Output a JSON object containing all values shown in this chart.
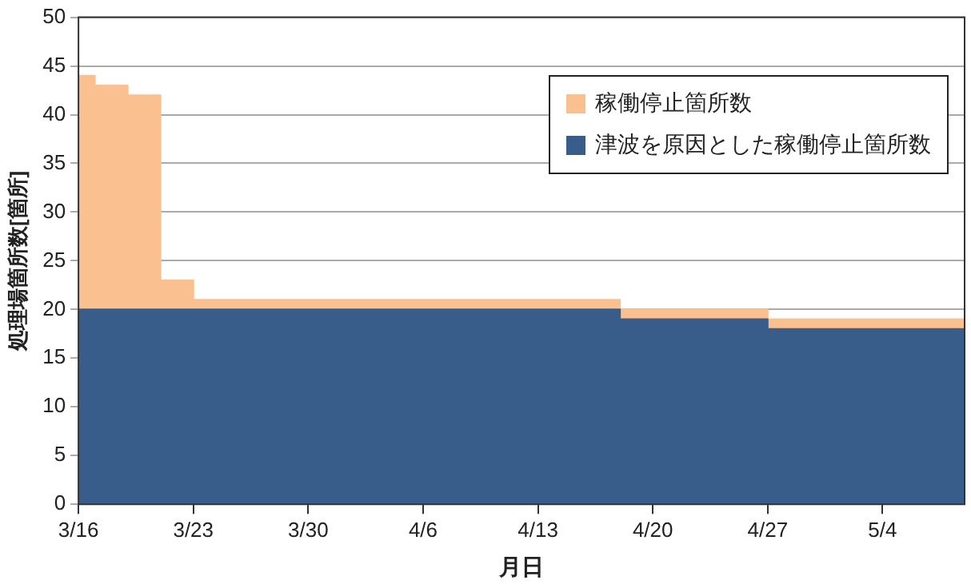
{
  "chart_data": {
    "type": "area",
    "xlabel": "月日",
    "ylabel": "処理場箇所数[箇所]",
    "series": [
      {
        "name": "稼働停止箇所数",
        "color": "#fac090",
        "x": [
          "--03-16",
          "--03-17",
          "--03-17",
          "--03-19",
          "--03-19",
          "--03-21",
          "--03-21",
          "--03-23",
          "--03-23",
          "--04-18",
          "--04-18",
          "--04-27",
          "--04-27",
          "--05-09"
        ],
        "values": [
          44,
          44,
          43,
          43,
          42,
          42,
          23,
          23,
          21,
          21,
          20,
          20,
          19,
          19
        ]
      },
      {
        "name": "津波を原因とした稼働停止箇所数",
        "color": "#385d8a",
        "x": [
          "--03-16",
          "--04-18",
          "--04-18",
          "--04-27",
          "--04-27",
          "--05-09"
        ],
        "values": [
          20,
          20,
          19,
          19,
          18,
          18
        ]
      }
    ],
    "xlim": [
      "--03-16",
      "--05-09"
    ],
    "xticks": [
      {
        "value": "--03-16",
        "label": "3/16"
      },
      {
        "value": "--03-23",
        "label": "3/23"
      },
      {
        "value": "--03-30",
        "label": "3/30"
      },
      {
        "value": "--04-06",
        "label": "4/6"
      },
      {
        "value": "--04-13",
        "label": "4/13"
      },
      {
        "value": "--04-20",
        "label": "4/20"
      },
      {
        "value": "--04-27",
        "label": "4/27"
      },
      {
        "value": "--05-04",
        "label": "5/4"
      }
    ],
    "ylim": [
      0,
      50
    ],
    "yticks": [
      0,
      5,
      10,
      15,
      20,
      25,
      30,
      35,
      40,
      45,
      50
    ],
    "grid": "y",
    "legend": "top right"
  }
}
